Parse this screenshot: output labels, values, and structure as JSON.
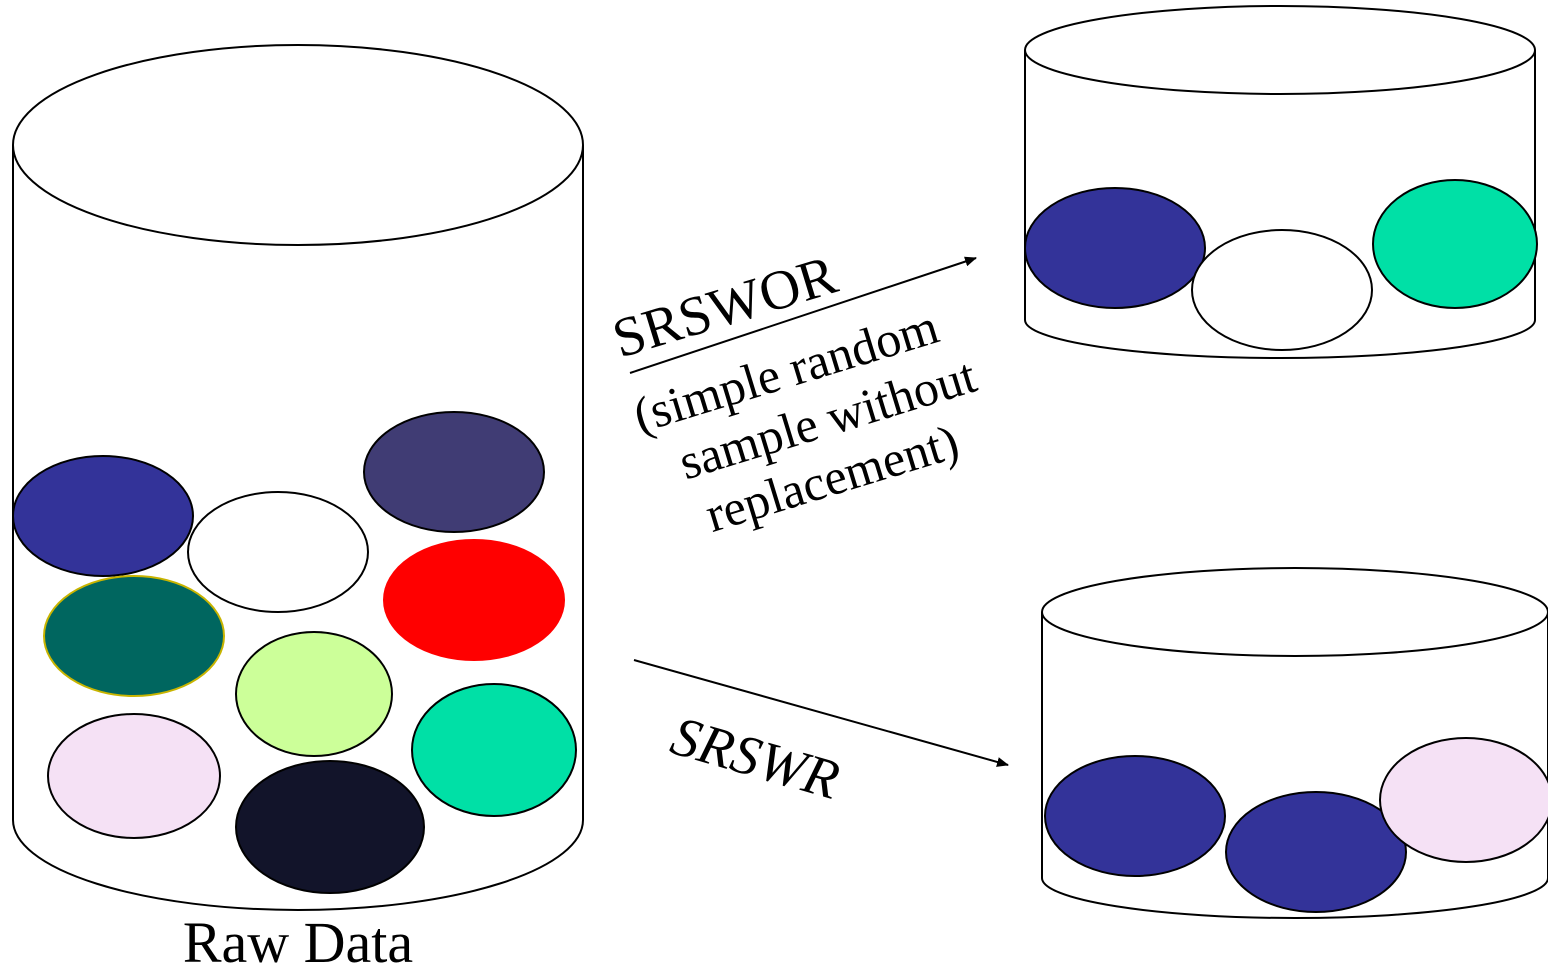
{
  "labels": {
    "raw_data": "Raw Data",
    "srswor": "SRSWOR",
    "srswor_desc_line1": "(simple random",
    "srswor_desc_line2": "sample without",
    "srswor_desc_line3": "replacement)",
    "srswr": "SRSWR"
  },
  "colors": {
    "navy": "#333399",
    "white": "#ffffff",
    "slate_purple": "#403c74",
    "dark_teal": "#00665f",
    "red": "#ff0000",
    "light_green": "#ccff99",
    "light_pink": "#f5e1f5",
    "black_navy": "#12142a",
    "mint": "#00e0a6",
    "stroke": "#000000",
    "teal_outline": "#c8b400"
  },
  "raw_data_balls": [
    "navy",
    "white",
    "slate_purple",
    "dark_teal",
    "red",
    "light_green",
    "light_pink",
    "black_navy",
    "mint"
  ],
  "srswor_sample_balls": [
    "navy",
    "white",
    "mint"
  ],
  "srswr_sample_balls": [
    "navy",
    "navy",
    "light_pink"
  ]
}
